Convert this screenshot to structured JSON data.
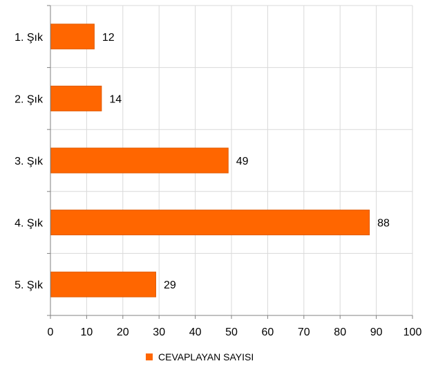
{
  "chart_data": {
    "type": "bar",
    "orientation": "horizontal",
    "categories": [
      "1. Şık",
      "2. Şık",
      "3. Şık",
      "4. Şık",
      "5. Şık"
    ],
    "series": [
      {
        "name": "CEVAPLAYAN SAYISI",
        "values": [
          12,
          14,
          49,
          88,
          29
        ]
      }
    ],
    "xlim": [
      0,
      100
    ],
    "x_ticks": [
      "0",
      "10",
      "20",
      "30",
      "40",
      "50",
      "60",
      "70",
      "80",
      "90",
      "100"
    ],
    "data_labels": [
      "12",
      "14",
      "49",
      "88",
      "29"
    ],
    "grid": true,
    "legend": {
      "position": "bottom",
      "label": "CEVAPLAYAN SAYISI"
    },
    "colors": {
      "bar": "#ff6600",
      "bar_border": "#e05a00",
      "grid": "#d9d9d9",
      "axis": "#808080"
    }
  }
}
